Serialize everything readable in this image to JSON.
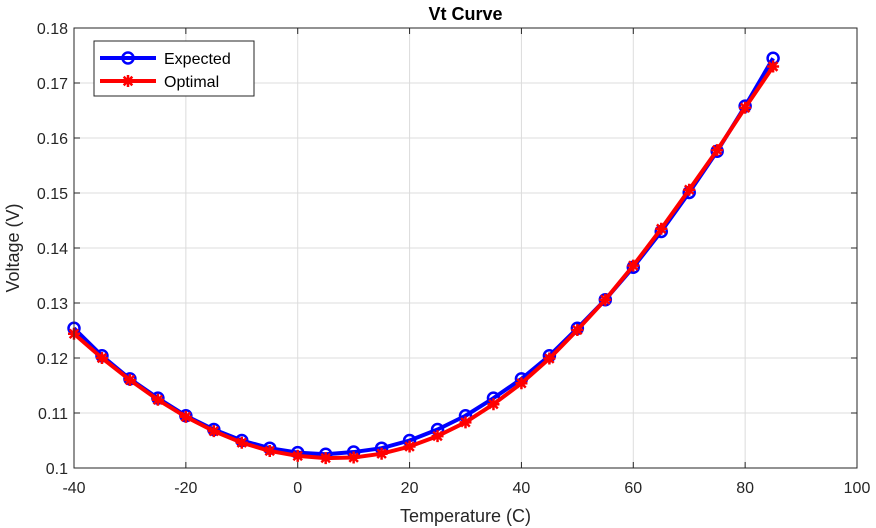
{
  "chart_data": {
    "type": "line",
    "title": "Vt Curve",
    "xlabel": "Temperature (C)",
    "ylabel": "Voltage (V)",
    "xlim": [
      -40,
      100
    ],
    "ylim": [
      0.1,
      0.18
    ],
    "xticks": [
      -40,
      -20,
      0,
      20,
      40,
      60,
      80,
      100
    ],
    "xtick_labels": [
      "-40",
      "-20",
      "0",
      "20",
      "40",
      "60",
      "80",
      "100"
    ],
    "yticks": [
      0.1,
      0.11,
      0.12,
      0.13,
      0.14,
      0.15,
      0.16,
      0.17,
      0.18
    ],
    "ytick_labels": [
      "0.1",
      "0.11",
      "0.12",
      "0.13",
      "0.14",
      "0.15",
      "0.16",
      "0.17",
      "0.18"
    ],
    "grid": true,
    "legend_position": "top-left",
    "x": [
      -40,
      -35,
      -30,
      -25,
      -20,
      -15,
      -10,
      -5,
      0,
      5,
      10,
      15,
      20,
      25,
      30,
      35,
      40,
      45,
      50,
      55,
      60,
      65,
      70,
      75,
      80,
      85
    ],
    "series": [
      {
        "name": "Expected",
        "color": "#0000ff",
        "marker": "circle",
        "values": [
          0.1254,
          0.1204,
          0.1162,
          0.1127,
          0.1095,
          0.107,
          0.105,
          0.1036,
          0.1028,
          0.1025,
          0.1029,
          0.1036,
          0.105,
          0.107,
          0.1095,
          0.1127,
          0.1162,
          0.1204,
          0.1254,
          0.1306,
          0.1365,
          0.143,
          0.1501,
          0.1576,
          0.1658,
          0.1745
        ]
      },
      {
        "name": "Optimal",
        "color": "#ff0000",
        "marker": "asterisk",
        "values": [
          0.1244,
          0.12,
          0.116,
          0.1124,
          0.1093,
          0.1067,
          0.1046,
          0.1031,
          0.1022,
          0.1018,
          0.1019,
          0.1026,
          0.1039,
          0.1058,
          0.1083,
          0.1116,
          0.1154,
          0.1199,
          0.1251,
          0.1306,
          0.1368,
          0.1435,
          0.1506,
          0.1578,
          0.1655,
          0.173
        ]
      }
    ]
  }
}
